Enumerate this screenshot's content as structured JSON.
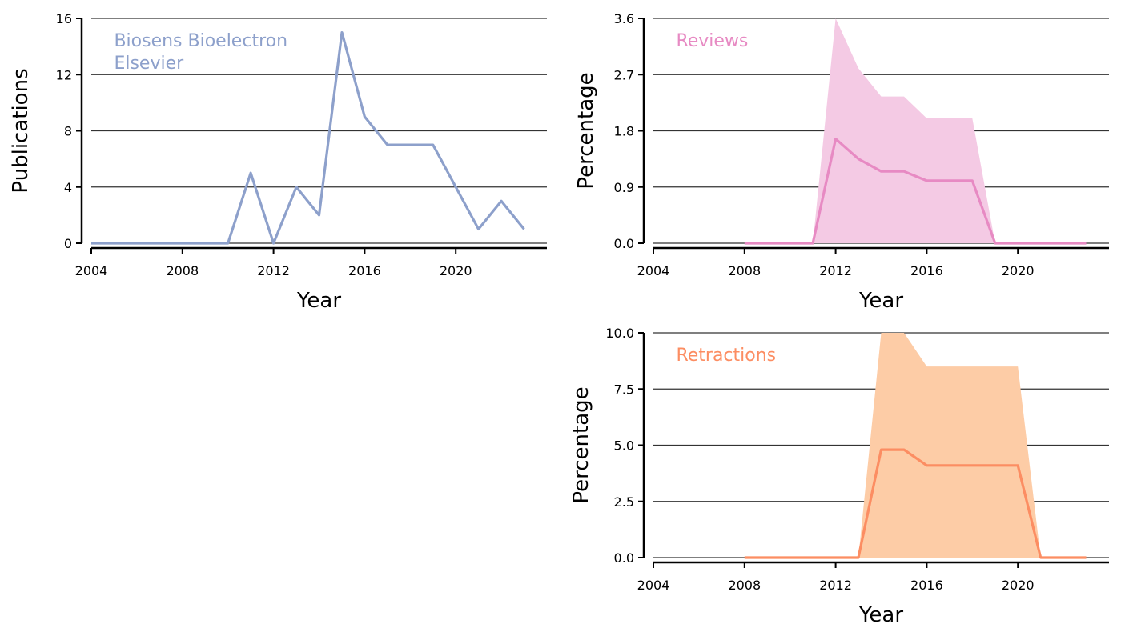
{
  "chart_data": [
    {
      "type": "line",
      "id": "publications",
      "annotation": [
        "Biosens Bioelectron",
        "Elsevier"
      ],
      "xlabel": "Year",
      "ylabel": "Publications",
      "xlim": [
        2004,
        2024
      ],
      "ylim": [
        0,
        16
      ],
      "xticks": [
        2004,
        2008,
        2012,
        2016,
        2020
      ],
      "yticks": [
        0,
        4,
        8,
        12,
        16
      ],
      "ytick_labels": [
        "0",
        "4",
        "8",
        "12",
        "16"
      ],
      "grid": "horizontal",
      "color": "#8da0cb",
      "x": [
        2004,
        2005,
        2006,
        2007,
        2008,
        2009,
        2010,
        2011,
        2012,
        2013,
        2014,
        2015,
        2016,
        2017,
        2018,
        2019,
        2020,
        2021,
        2022,
        2023
      ],
      "series": [
        {
          "values": [
            0,
            0,
            0,
            0,
            0,
            0,
            0,
            5,
            0,
            4,
            2,
            15,
            9,
            7,
            7,
            7,
            4,
            1,
            3,
            1
          ]
        }
      ]
    },
    {
      "type": "area",
      "id": "reviews",
      "annotation": [
        "Reviews"
      ],
      "xlabel": "Year",
      "ylabel": "Percentage",
      "xlim": [
        2004,
        2024
      ],
      "ylim": [
        0,
        3.6
      ],
      "xticks": [
        2004,
        2008,
        2012,
        2016,
        2020
      ],
      "yticks": [
        0,
        0.9,
        1.8,
        2.7,
        3.6
      ],
      "ytick_labels": [
        "0.0",
        "0.9",
        "1.8",
        "2.7",
        "3.6"
      ],
      "grid": "horizontal",
      "color": "#e78ac3",
      "band_color": "#f4cae4",
      "x": [
        2008,
        2009,
        2010,
        2011,
        2012,
        2013,
        2014,
        2015,
        2016,
        2017,
        2018,
        2019,
        2020,
        2021,
        2022,
        2023
      ],
      "series": [
        {
          "role": "line",
          "values": [
            0,
            0,
            0,
            0,
            1.67,
            1.35,
            1.15,
            1.15,
            1.0,
            1.0,
            1.0,
            0,
            0,
            0,
            0,
            0
          ]
        },
        {
          "role": "upper",
          "values": [
            0,
            0,
            0,
            0,
            3.6,
            2.8,
            2.35,
            2.35,
            2.0,
            2.0,
            2.0,
            0,
            0,
            0,
            0,
            0
          ]
        },
        {
          "role": "lower",
          "values": [
            0,
            0,
            0,
            0,
            0,
            0,
            0,
            0,
            0,
            0,
            0,
            0,
            0,
            0,
            0,
            0
          ]
        }
      ]
    },
    {
      "type": "area",
      "id": "retractions",
      "annotation": [
        "Retractions"
      ],
      "xlabel": "Year",
      "ylabel": "Percentage",
      "xlim": [
        2004,
        2024
      ],
      "ylim": [
        0,
        10
      ],
      "xticks": [
        2004,
        2008,
        2012,
        2016,
        2020
      ],
      "yticks": [
        0,
        2.5,
        5,
        7.5,
        10
      ],
      "ytick_labels": [
        "0.0",
        "2.5",
        "5.0",
        "7.5",
        "10.0"
      ],
      "grid": "horizontal",
      "color": "#fc8d62",
      "band_color": "#fdcca6",
      "x": [
        2008,
        2009,
        2010,
        2011,
        2012,
        2013,
        2014,
        2015,
        2016,
        2017,
        2018,
        2019,
        2020,
        2021,
        2022,
        2023
      ],
      "series": [
        {
          "role": "line",
          "values": [
            0,
            0,
            0,
            0,
            0,
            0,
            4.8,
            4.8,
            4.1,
            4.1,
            4.1,
            4.1,
            4.1,
            0,
            0,
            0
          ]
        },
        {
          "role": "upper",
          "values": [
            0,
            0,
            0,
            0,
            0,
            0,
            10,
            10,
            8.5,
            8.5,
            8.5,
            8.5,
            8.5,
            0,
            0,
            0
          ]
        },
        {
          "role": "lower",
          "values": [
            0,
            0,
            0,
            0,
            0,
            0,
            0,
            0,
            0,
            0,
            0,
            0,
            0,
            0,
            0,
            0
          ]
        }
      ]
    }
  ]
}
